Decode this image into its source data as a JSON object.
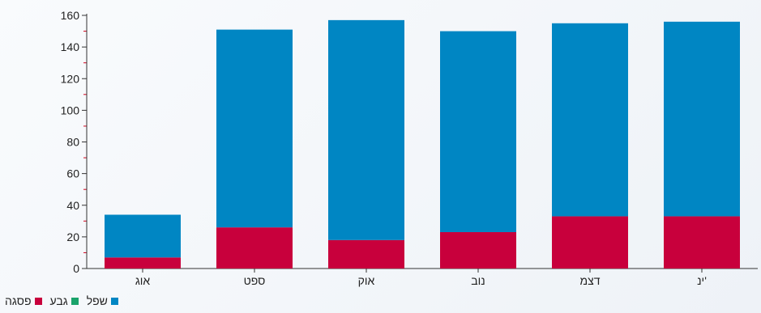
{
  "chart_data": {
    "type": "bar",
    "stacked": true,
    "categories": [
      "אוג",
      "ספט",
      "אוק",
      "נוב",
      "דצמ",
      "ינ'"
    ],
    "series": [
      {
        "name": "פסגה",
        "color": "#c8003c",
        "values": [
          7,
          26,
          18,
          23,
          33,
          33
        ]
      },
      {
        "name": "גבע",
        "color": "#1aa36b",
        "values": [
          0,
          0,
          0,
          0,
          0,
          0
        ]
      },
      {
        "name": "שפל",
        "color": "#0086c3",
        "values": [
          27,
          125,
          139,
          127,
          122,
          123
        ]
      }
    ],
    "ylim": [
      0,
      160
    ],
    "yticks": [
      0,
      20,
      40,
      60,
      80,
      100,
      120,
      140,
      160
    ],
    "legend_position": "bottom-left"
  }
}
